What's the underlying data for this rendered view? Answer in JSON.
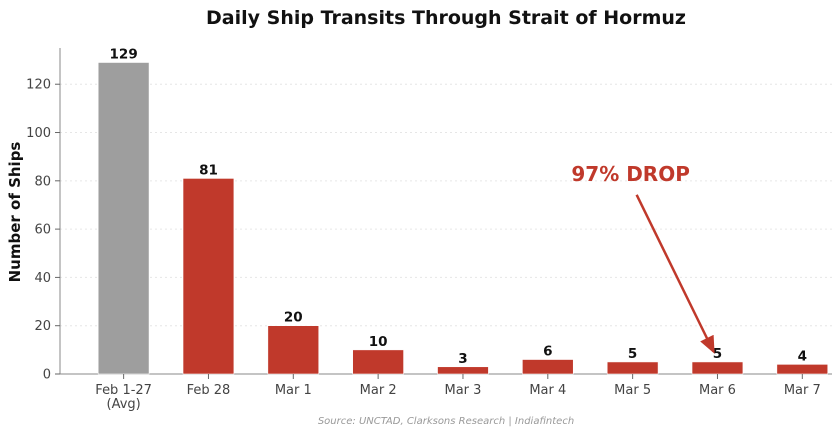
{
  "chart_data": {
    "type": "bar",
    "title": "Daily Ship Transits Through Strait of Hormuz",
    "xlabel": "",
    "ylabel": "Number of Ships",
    "ylim": [
      0,
      135
    ],
    "yticks": [
      0,
      20,
      40,
      60,
      80,
      100,
      120
    ],
    "grid": "horizontal",
    "categories": [
      [
        "Feb 1-27",
        "(Avg)"
      ],
      [
        "Feb 28"
      ],
      [
        "Mar 1"
      ],
      [
        "Mar 2"
      ],
      [
        "Mar 3"
      ],
      [
        "Mar 4"
      ],
      [
        "Mar 5"
      ],
      [
        "Mar 6"
      ],
      [
        "Mar 7"
      ]
    ],
    "values": [
      129,
      81,
      20,
      10,
      3,
      6,
      5,
      5,
      4
    ],
    "bar_colors": [
      "#9e9e9e",
      "#c0392b",
      "#c0392b",
      "#c0392b",
      "#c0392b",
      "#c0392b",
      "#c0392b",
      "#c0392b",
      "#c0392b"
    ],
    "annotation": {
      "text": "97% DROP",
      "color": "#c0392b",
      "text_at": {
        "category_index": 6,
        "value": 80
      },
      "arrow_to": {
        "category_index": 7,
        "value": 6
      }
    },
    "source": "Source: UNCTAD, Clarksons Research | Indiafintech"
  }
}
